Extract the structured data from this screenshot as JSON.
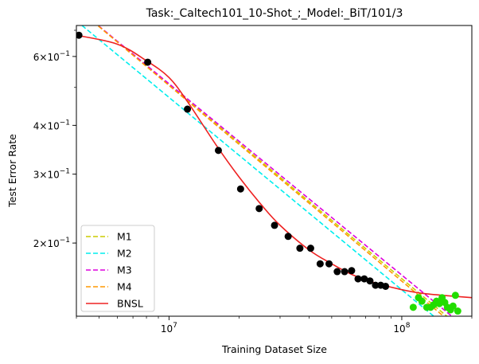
{
  "chart_data": {
    "type": "line",
    "title": "Task:_Caltech101_10-Shot_;_Model:_BiT/101/3",
    "xlabel": "Training Dataset Size",
    "ylabel": "Test Error Rate",
    "x_scale": "log",
    "y_scale": "log",
    "xlim": [
      4000000,
      200000000
    ],
    "ylim": [
      0.13,
      0.72
    ],
    "x_ticks": [
      {
        "value": 10000000,
        "mantissa": "10",
        "exp": "7"
      },
      {
        "value": 100000000,
        "mantissa": "10",
        "exp": "8"
      }
    ],
    "y_ticks": [
      {
        "value": 0.2,
        "mantissa": "2×10",
        "exp": "−1"
      },
      {
        "value": 0.3,
        "mantissa": "3×10",
        "exp": "−1"
      },
      {
        "value": 0.4,
        "mantissa": "4×10",
        "exp": "−1"
      },
      {
        "value": 0.6,
        "mantissa": "6×10",
        "exp": "−1"
      }
    ],
    "train_points": {
      "color": "#000000",
      "x": [
        4100000,
        8100000,
        12000000,
        16300000,
        20300000,
        24400000,
        28400000,
        32500000,
        36500000,
        40600000,
        44600000,
        48700000,
        52800000,
        56800000,
        60900000,
        64900000,
        69000000,
        73000000,
        77100000,
        81200000,
        85200000
      ],
      "y": [
        0.68,
        0.58,
        0.44,
        0.345,
        0.275,
        0.245,
        0.222,
        0.208,
        0.194,
        0.194,
        0.177,
        0.177,
        0.169,
        0.169,
        0.17,
        0.162,
        0.162,
        0.16,
        0.156,
        0.156,
        0.155
      ]
    },
    "test_points": {
      "color": "#22dd00",
      "x": [
        112000000,
        118000000,
        122000000,
        128000000,
        133000000,
        137000000,
        141000000,
        145000000,
        149000000,
        153000000,
        157000000,
        162000000,
        166000000,
        170000000,
        174000000
      ],
      "y": [
        0.137,
        0.145,
        0.142,
        0.137,
        0.137,
        0.139,
        0.142,
        0.14,
        0.145,
        0.141,
        0.137,
        0.135,
        0.138,
        0.147,
        0.134
      ]
    },
    "series": [
      {
        "name": "M1",
        "color": "#cccc00",
        "dash": true,
        "x": [
          4000000,
          200000000
        ],
        "y": [
          0.8,
          0.115
        ]
      },
      {
        "name": "M2",
        "color": "#00eeee",
        "dash": true,
        "x": [
          4000000,
          200000000
        ],
        "y": [
          0.74,
          0.108
        ]
      },
      {
        "name": "M3",
        "color": "#dd00dd",
        "dash": true,
        "x": [
          4000000,
          200000000
        ],
        "y": [
          0.8,
          0.118
        ]
      },
      {
        "name": "M4",
        "color": "#ff9900",
        "dash": true,
        "x": [
          4000000,
          200000000
        ],
        "y": [
          0.8,
          0.113
        ]
      },
      {
        "name": "BNSL",
        "color": "#ee2222",
        "dash": false,
        "x": [
          4000000,
          6000000,
          8000000,
          10000000,
          12000000,
          16000000,
          20000000,
          25000000,
          30000000,
          40000000,
          50000000,
          60000000,
          70000000,
          80000000,
          100000000,
          120000000,
          150000000,
          200000000
        ],
        "y": [
          0.68,
          0.645,
          0.585,
          0.53,
          0.46,
          0.355,
          0.295,
          0.25,
          0.222,
          0.192,
          0.177,
          0.167,
          0.161,
          0.157,
          0.152,
          0.149,
          0.147,
          0.145
        ]
      }
    ],
    "legend_position": "lower-left",
    "grid": false
  }
}
